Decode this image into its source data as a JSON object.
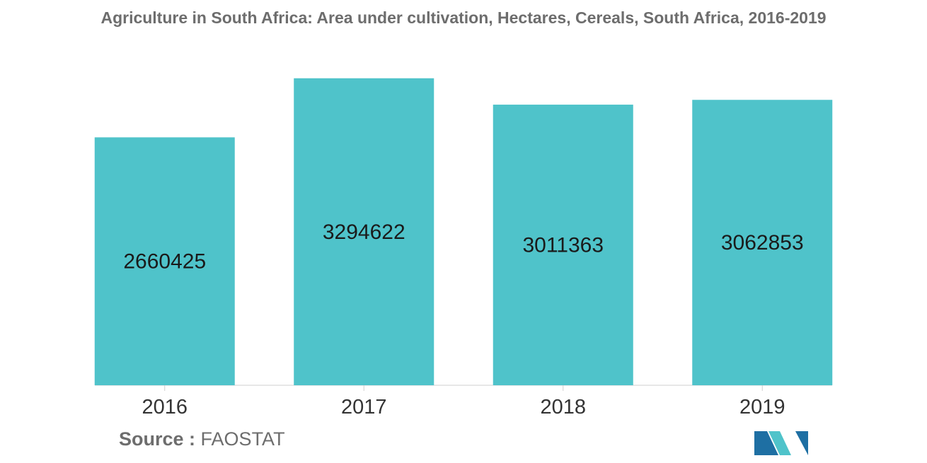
{
  "chart_data": {
    "type": "bar",
    "title": "Agriculture in South Africa: Area under cultivation, Hectares, Cereals, South Africa, 2016-2019",
    "categories": [
      "2016",
      "2017",
      "2018",
      "2019"
    ],
    "values": [
      2660425,
      3294622,
      3011363,
      3062853
    ],
    "data_labels": [
      "2660425",
      "3294622",
      "3011363",
      "3062853"
    ],
    "xlabel": "",
    "ylabel": "",
    "ylim": [
      0,
      3300000
    ],
    "grid": false,
    "legend": "none",
    "bar_color": "#4fc3ca",
    "label_color": "#1a1a1a",
    "axis_color": "#cfcfcf"
  },
  "source": {
    "label": "Source :",
    "value": "FAOSTAT"
  },
  "logo": {
    "icon": "mordor-intelligence-logo-icon",
    "colors": [
      "#1e6fa3",
      "#4fc3ca"
    ]
  }
}
